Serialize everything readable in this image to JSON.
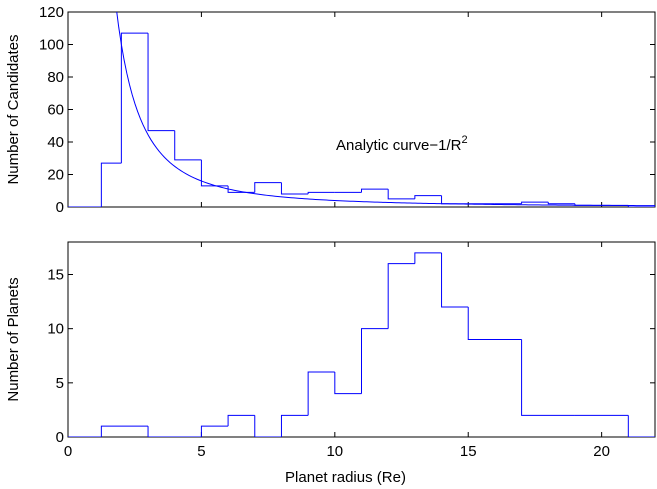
{
  "chart_data": [
    {
      "type": "histogram",
      "ylabel": "Number of Candidates",
      "xlim": [
        0,
        22
      ],
      "ylim": [
        0,
        120
      ],
      "xticks": [
        0,
        5,
        10,
        15,
        20
      ],
      "yticks": [
        0,
        20,
        40,
        60,
        80,
        100,
        120
      ],
      "bin_edges": [
        1.25,
        2,
        3,
        4,
        5,
        6,
        7,
        8,
        9,
        10,
        11,
        12,
        13,
        14,
        15,
        16,
        17,
        18,
        19,
        20,
        21
      ],
      "counts": [
        27,
        107,
        47,
        29,
        13,
        9,
        15,
        8,
        9,
        9,
        11,
        5,
        7,
        2,
        2,
        2,
        3,
        2,
        1,
        1
      ],
      "line_color": "#0000ff",
      "annotation": {
        "text": "Analytic curve−1/R",
        "superscript": "2"
      },
      "curve": {
        "form": "k / R^2",
        "k": 400,
        "x_range": [
          1.8,
          22
        ]
      }
    },
    {
      "type": "histogram",
      "ylabel": "Number of Planets",
      "xlabel": "Planet radius (Re)",
      "xlim": [
        0,
        22
      ],
      "ylim": [
        0,
        18
      ],
      "xticks": [
        0,
        5,
        10,
        15,
        20
      ],
      "yticks": [
        0,
        5,
        10,
        15
      ],
      "bin_edges": [
        1.25,
        3,
        5,
        6,
        7,
        8,
        9,
        10,
        11,
        12,
        13,
        14,
        15,
        17,
        19,
        21
      ],
      "counts": [
        1,
        0,
        1,
        2,
        0,
        2,
        6,
        4,
        10,
        16,
        17,
        12,
        9,
        2,
        2
      ],
      "line_color": "#0000ff"
    }
  ]
}
